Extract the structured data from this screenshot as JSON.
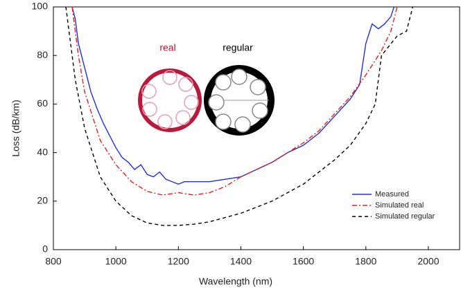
{
  "chart_data": {
    "type": "line",
    "xlabel": "Wavelength (nm)",
    "ylabel": "Loss (dB/km)",
    "xlim": [
      800,
      2100
    ],
    "xticks": [
      800,
      1000,
      1200,
      1400,
      1600,
      1800,
      2000
    ],
    "ylim": [
      0,
      100
    ],
    "yticks": [
      0,
      20,
      40,
      60,
      80,
      100
    ],
    "legend": "lower right",
    "annotations": [
      {
        "text": "real",
        "color": "#c8102e"
      },
      {
        "text": "regular",
        "color": "#000000"
      }
    ],
    "series": [
      {
        "name": "Measured",
        "color": "#1f2fd6",
        "dash": "none",
        "x": [
          860,
          870,
          880,
          890,
          900,
          920,
          940,
          960,
          980,
          1000,
          1020,
          1040,
          1060,
          1080,
          1100,
          1120,
          1140,
          1160,
          1180,
          1200,
          1220,
          1250,
          1300,
          1350,
          1400,
          1450,
          1500,
          1550,
          1600,
          1650,
          1700,
          1750,
          1780,
          1800,
          1820,
          1840,
          1860,
          1880,
          1890
        ],
        "values": [
          100,
          95,
          85,
          80,
          75,
          65,
          58,
          52,
          47,
          42,
          38,
          36,
          33,
          35,
          31,
          30,
          32,
          29,
          28,
          27,
          28,
          28,
          28,
          29,
          30,
          33,
          36,
          40,
          43,
          48,
          55,
          62,
          68,
          85,
          93,
          91,
          93,
          96,
          100
        ]
      },
      {
        "name": "Simulated real",
        "color": "#e0201a",
        "dash": "7 3 2 3",
        "x": [
          860,
          880,
          900,
          950,
          1000,
          1050,
          1100,
          1150,
          1200,
          1250,
          1300,
          1350,
          1400,
          1450,
          1500,
          1550,
          1600,
          1650,
          1700,
          1750,
          1800,
          1850,
          1880,
          1900
        ],
        "values": [
          100,
          80,
          65,
          45,
          35,
          28,
          24,
          22.5,
          23.5,
          22.5,
          23.5,
          26,
          30,
          33,
          36,
          40,
          44,
          49,
          56,
          63,
          72,
          82,
          90,
          100
        ]
      },
      {
        "name": "Simulated regular",
        "color": "#000000",
        "dash": "5 4",
        "x": [
          840,
          850,
          870,
          900,
          950,
          1000,
          1050,
          1100,
          1150,
          1200,
          1250,
          1300,
          1400,
          1500,
          1600,
          1700,
          1750,
          1800,
          1830,
          1850,
          1900,
          1930,
          1950
        ],
        "values": [
          100,
          90,
          70,
          50,
          30,
          20,
          14,
          11,
          10,
          10,
          10.5,
          11.5,
          15,
          20,
          27,
          37,
          43,
          52,
          60,
          80,
          88,
          90,
          100
        ]
      }
    ]
  }
}
